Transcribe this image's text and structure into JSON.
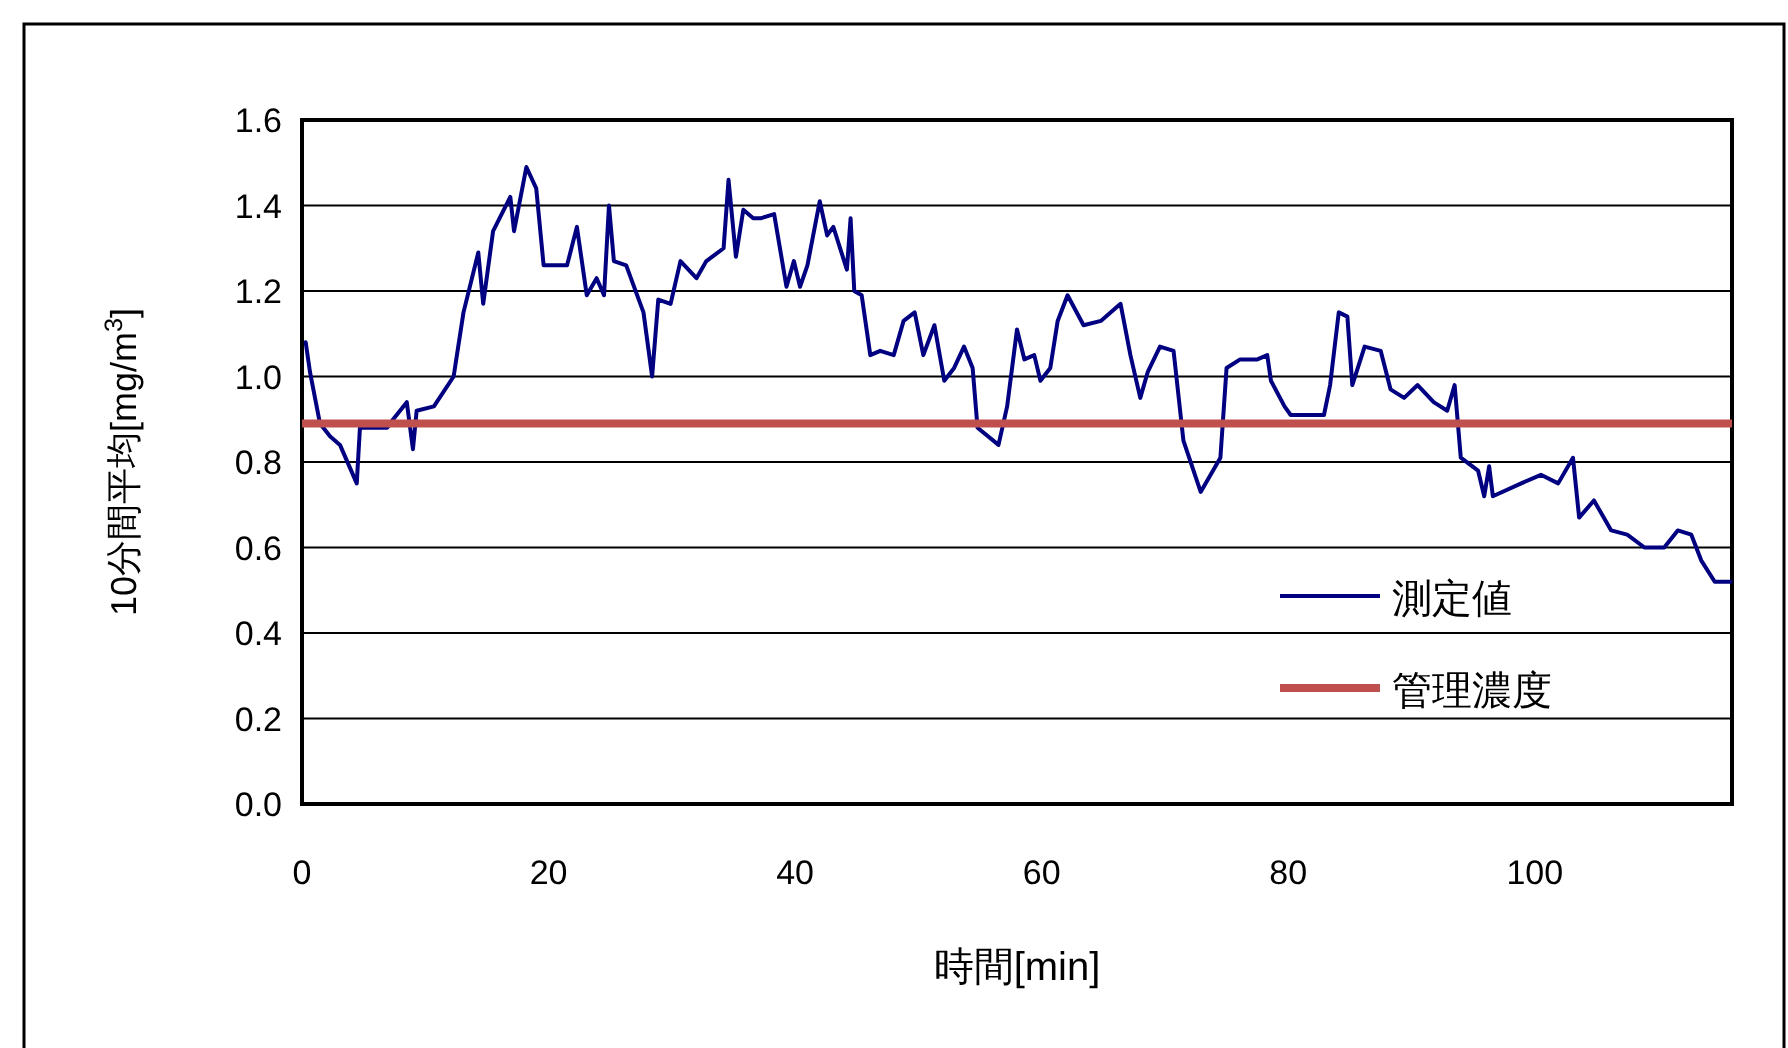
{
  "chart_data": {
    "type": "line",
    "xlabel": "時間[min]",
    "ylabel": "10分間平均[mg/m$^{3}$]",
    "xlim": [
      0,
      116
    ],
    "xticks": [
      0,
      20,
      40,
      60,
      80,
      100
    ],
    "ylim": [
      0,
      1.6
    ],
    "yticks": [
      {
        "value": 0,
        "label": "0.0"
      },
      {
        "value": 0.2,
        "label": "0.2"
      },
      {
        "value": 0.4,
        "label": "0.4"
      },
      {
        "value": 0.6,
        "label": "0.6"
      },
      {
        "value": 0.8,
        "label": "0.8"
      },
      {
        "value": 1.0,
        "label": "1.0"
      },
      {
        "value": 1.2,
        "label": "1.2"
      },
      {
        "value": 1.4,
        "label": "1.4"
      },
      {
        "value": 1.6,
        "label": "1.6"
      }
    ],
    "grid": "y",
    "legend": "bottom right",
    "marker": "none",
    "line_style": "solid",
    "series": [
      {
        "name": "測定値",
        "color": "#000080",
        "x": [
          0.3,
          0.65,
          1.46,
          2.27,
          3.08,
          4.44,
          4.7,
          5.5,
          6.9,
          7.4,
          8.5,
          9.0,
          9.3,
          10.7,
          12.3,
          13.1,
          14.3,
          14.7,
          15.5,
          16.9,
          17.2,
          18.2,
          19.0,
          19.6,
          21.5,
          22.3,
          23.1,
          23.9,
          24.5,
          24.9,
          25.3,
          26.3,
          27.7,
          28.4,
          28.9,
          29.9,
          30.7,
          32.0,
          32.8,
          34.2,
          34.6,
          35.2,
          35.8,
          36.6,
          37.2,
          38.3,
          39.3,
          39.9,
          40.4,
          41.0,
          42.0,
          42.6,
          43.1,
          44.2,
          44.5,
          44.8,
          45.4,
          46.1,
          46.9,
          48.0,
          48.8,
          49.7,
          50.4,
          51.3,
          52.1,
          52.9,
          53.7,
          54.4,
          54.8,
          56.5,
          57.2,
          58.0,
          58.6,
          59.4,
          59.9,
          60.7,
          61.3,
          62.1,
          63.4,
          64.8,
          66.4,
          67.2,
          68.0,
          68.6,
          69.6,
          70.7,
          71.5,
          72.9,
          74.5,
          75.0,
          76.1,
          77.5,
          78.3,
          78.6,
          79.7,
          80.2,
          81.5,
          82.9,
          83.4,
          84.1,
          84.8,
          85.2,
          86.2,
          87.5,
          88.3,
          89.4,
          90.5,
          91.8,
          92.9,
          93.5,
          94.0,
          95.4,
          95.9,
          96.3,
          96.6,
          98.9,
          100.5,
          101.9,
          103.1,
          103.6,
          104.8,
          106.2,
          107.5,
          108.9,
          110.5,
          111.6,
          112.7,
          113.5,
          114.6,
          115.9
        ],
        "values": [
          1.08,
          1.01,
          0.89,
          0.86,
          0.84,
          0.75,
          0.88,
          0.88,
          0.88,
          0.9,
          0.94,
          0.83,
          0.92,
          0.93,
          1.0,
          1.15,
          1.29,
          1.17,
          1.34,
          1.42,
          1.34,
          1.49,
          1.44,
          1.26,
          1.26,
          1.35,
          1.19,
          1.23,
          1.19,
          1.4,
          1.27,
          1.26,
          1.15,
          1.0,
          1.18,
          1.17,
          1.27,
          1.23,
          1.27,
          1.3,
          1.46,
          1.28,
          1.39,
          1.37,
          1.37,
          1.38,
          1.21,
          1.27,
          1.21,
          1.26,
          1.41,
          1.33,
          1.35,
          1.25,
          1.37,
          1.2,
          1.19,
          1.05,
          1.06,
          1.05,
          1.13,
          1.15,
          1.05,
          1.12,
          0.99,
          1.02,
          1.07,
          1.02,
          0.88,
          0.84,
          0.93,
          1.11,
          1.04,
          1.05,
          0.99,
          1.02,
          1.13,
          1.19,
          1.12,
          1.13,
          1.17,
          1.05,
          0.95,
          1.01,
          1.07,
          1.06,
          0.85,
          0.73,
          0.81,
          1.02,
          1.04,
          1.04,
          1.05,
          0.99,
          0.93,
          0.91,
          0.91,
          0.91,
          0.98,
          1.15,
          1.14,
          0.98,
          1.07,
          1.06,
          0.97,
          0.95,
          0.98,
          0.94,
          0.92,
          0.98,
          0.81,
          0.78,
          0.72,
          0.79,
          0.72,
          0.75,
          0.77,
          0.75,
          0.81,
          0.67,
          0.71,
          0.64,
          0.63,
          0.6,
          0.6,
          0.64,
          0.63,
          0.57,
          0.52,
          0.52
        ]
      }
    ],
    "ref_lines": [
      {
        "axis": "y",
        "value": 0.89,
        "label": "管理濃度",
        "color": "#c0504d"
      }
    ]
  }
}
